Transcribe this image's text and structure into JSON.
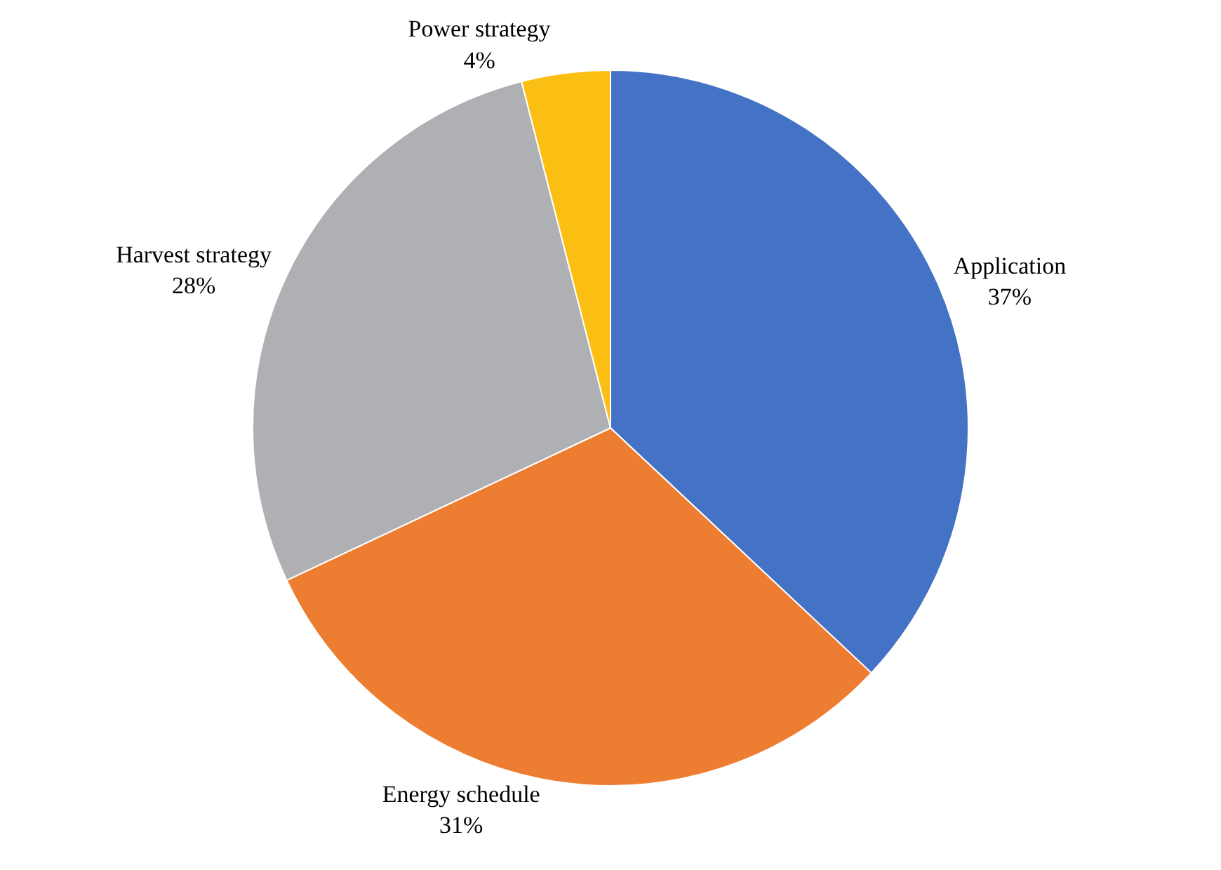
{
  "chart_data": {
    "type": "pie",
    "categories": [
      "Application",
      "Energy schedule",
      "Harvest strategy",
      "Power strategy"
    ],
    "values": [
      37,
      31,
      28,
      4
    ],
    "value_labels": [
      "37%",
      "31%",
      "28%",
      "4%"
    ],
    "colors": [
      "#4472c4",
      "#ed7d31",
      "#afb0b3",
      "#fbbf14"
    ],
    "legend": false
  }
}
